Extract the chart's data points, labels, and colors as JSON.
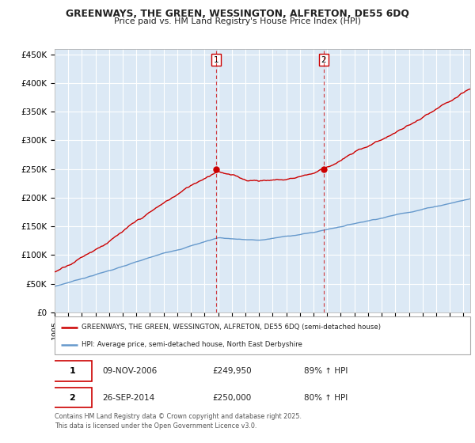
{
  "title_line1": "GREENWAYS, THE GREEN, WESSINGTON, ALFRETON, DE55 6DQ",
  "title_line2": "Price paid vs. HM Land Registry's House Price Index (HPI)",
  "fig_bg_color": "#ffffff",
  "plot_bg_color": "#dce9f5",
  "grid_color": "#ffffff",
  "ylabel_ticks": [
    "£0",
    "£50K",
    "£100K",
    "£150K",
    "£200K",
    "£250K",
    "£300K",
    "£350K",
    "£400K",
    "£450K"
  ],
  "ytick_values": [
    0,
    50000,
    100000,
    150000,
    200000,
    250000,
    300000,
    350000,
    400000,
    450000
  ],
  "ylim": [
    0,
    460000
  ],
  "xlim_start": 1995.0,
  "xlim_end": 2025.5,
  "sale1_x": 2006.86,
  "sale1_y": 249950,
  "sale2_x": 2014.73,
  "sale2_y": 250000,
  "vline1_x": 2006.86,
  "vline2_x": 2014.73,
  "vline_color": "#cc0000",
  "red_line_color": "#cc0000",
  "blue_line_color": "#6699cc",
  "legend_entry1": "GREENWAYS, THE GREEN, WESSINGTON, ALFRETON, DE55 6DQ (semi-detached house)",
  "legend_entry2": "HPI: Average price, semi-detached house, North East Derbyshire",
  "table_row1": [
    "1",
    "09-NOV-2006",
    "£249,950",
    "89% ↑ HPI"
  ],
  "table_row2": [
    "2",
    "26-SEP-2014",
    "£250,000",
    "80% ↑ HPI"
  ],
  "footnote": "Contains HM Land Registry data © Crown copyright and database right 2025.\nThis data is licensed under the Open Government Licence v3.0."
}
